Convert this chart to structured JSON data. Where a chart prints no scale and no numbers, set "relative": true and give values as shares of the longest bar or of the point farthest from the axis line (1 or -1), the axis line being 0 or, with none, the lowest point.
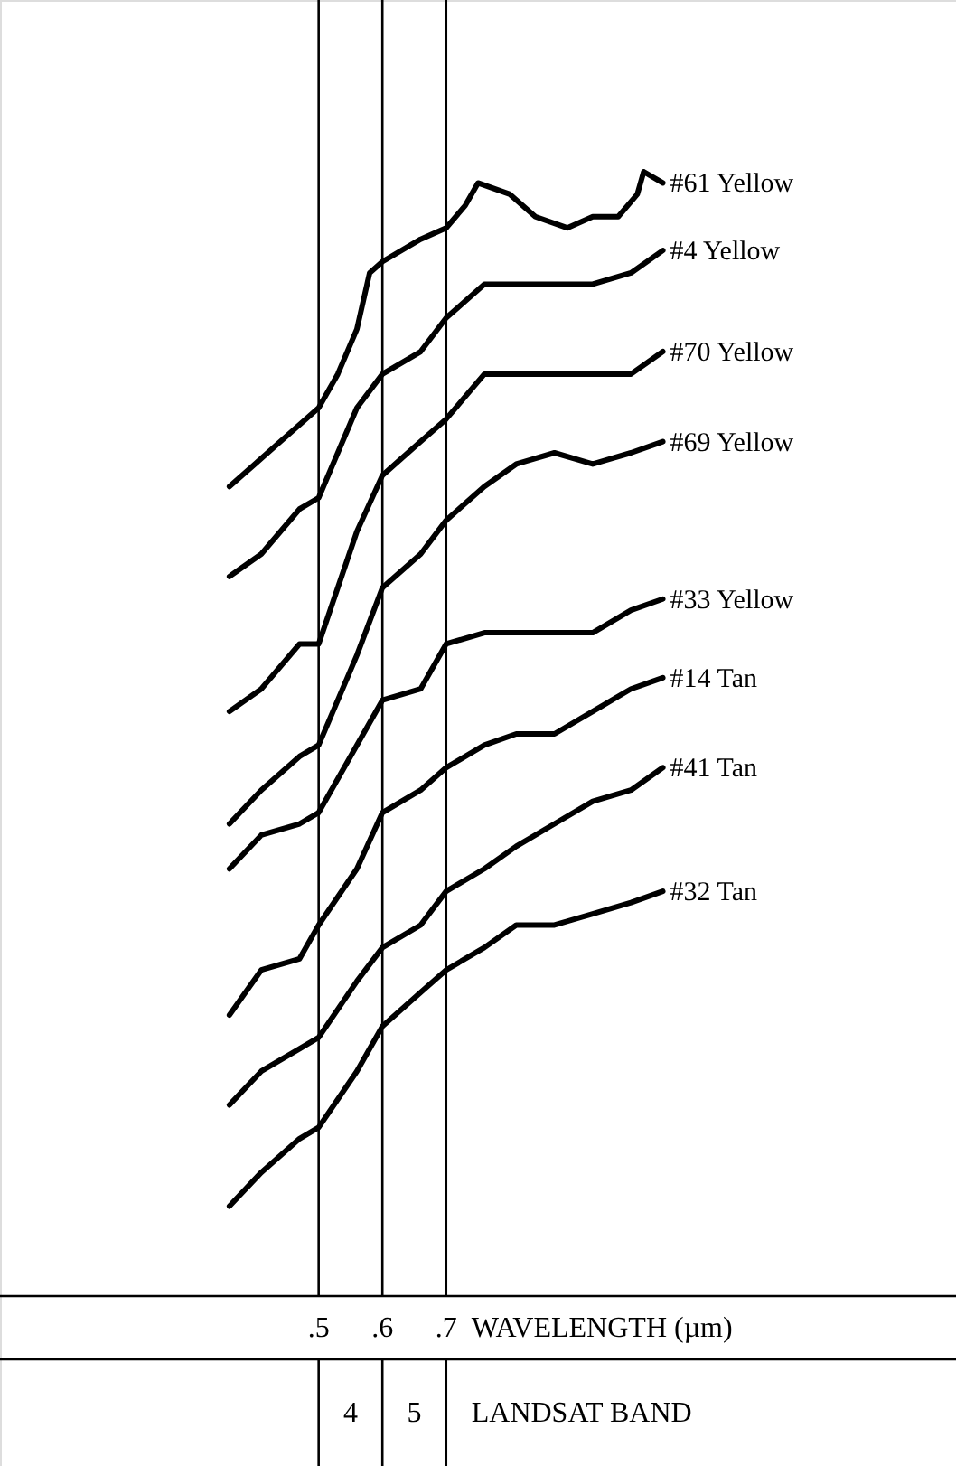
{
  "chart_data": {
    "type": "line",
    "relative": true,
    "xlabel": "WAVELENGTH (µm)",
    "xlim": [
      0,
      1.5
    ],
    "xticks": [
      {
        "value": 0.5,
        "label": ".5"
      },
      {
        "value": 0.6,
        "label": ".6"
      },
      {
        "value": 0.7,
        "label": ".7"
      }
    ],
    "x": [
      0.36,
      0.41,
      0.47,
      0.5,
      0.56,
      0.6,
      0.66,
      0.7,
      0.76,
      0.81,
      0.87,
      0.93,
      0.99,
      1.04
    ],
    "series": [
      {
        "name": "#61 Yellow",
        "color": "#000000",
        "x": [
          0.36,
          0.4,
          0.44,
          0.5,
          0.53,
          0.56,
          0.58,
          0.6,
          0.66,
          0.7,
          0.73,
          0.75,
          0.8,
          0.84,
          0.89,
          0.93,
          0.97,
          1.0,
          1.01,
          1.04
        ],
        "values": [
          0.72,
          0.74,
          0.76,
          0.79,
          0.82,
          0.86,
          0.91,
          0.92,
          0.94,
          0.95,
          0.97,
          0.99,
          0.98,
          0.96,
          0.95,
          0.96,
          0.96,
          0.98,
          1.0,
          0.99
        ]
      },
      {
        "name": "#4  Yellow",
        "color": "#000000",
        "values": [
          0.64,
          0.66,
          0.7,
          0.71,
          0.79,
          0.82,
          0.84,
          0.87,
          0.9,
          0.9,
          0.9,
          0.9,
          0.91,
          0.93
        ]
      },
      {
        "name": "#70 Yellow",
        "color": "#000000",
        "values": [
          0.52,
          0.54,
          0.58,
          0.58,
          0.68,
          0.73,
          0.76,
          0.78,
          0.82,
          0.82,
          0.82,
          0.82,
          0.82,
          0.84
        ]
      },
      {
        "name": "#69 Yellow",
        "color": "#000000",
        "values": [
          0.42,
          0.45,
          0.48,
          0.49,
          0.57,
          0.63,
          0.66,
          0.69,
          0.72,
          0.74,
          0.75,
          0.74,
          0.75,
          0.76
        ]
      },
      {
        "name": "#33 Yellow",
        "color": "#000000",
        "values": [
          0.38,
          0.41,
          0.42,
          0.43,
          0.49,
          0.53,
          0.54,
          0.58,
          0.59,
          0.59,
          0.59,
          0.59,
          0.61,
          0.62
        ]
      },
      {
        "name": "#14 Tan",
        "color": "#000000",
        "values": [
          0.25,
          0.29,
          0.3,
          0.33,
          0.38,
          0.43,
          0.45,
          0.47,
          0.49,
          0.5,
          0.5,
          0.52,
          0.54,
          0.55
        ]
      },
      {
        "name": "#41 Tan",
        "color": "#000000",
        "values": [
          0.17,
          0.2,
          0.22,
          0.23,
          0.28,
          0.31,
          0.33,
          0.36,
          0.38,
          0.4,
          0.42,
          0.44,
          0.45,
          0.47
        ]
      },
      {
        "name": "#32 Tan",
        "color": "#000000",
        "values": [
          0.08,
          0.11,
          0.14,
          0.15,
          0.2,
          0.24,
          0.27,
          0.29,
          0.31,
          0.33,
          0.33,
          0.34,
          0.35,
          0.36
        ]
      }
    ],
    "ref_lines": [
      {
        "axis": "x",
        "value": 0.5
      },
      {
        "axis": "x",
        "value": 0.6
      },
      {
        "axis": "x",
        "value": 0.7
      }
    ],
    "annotations": [
      "4",
      "5",
      "LANDSAT BAND"
    ]
  }
}
